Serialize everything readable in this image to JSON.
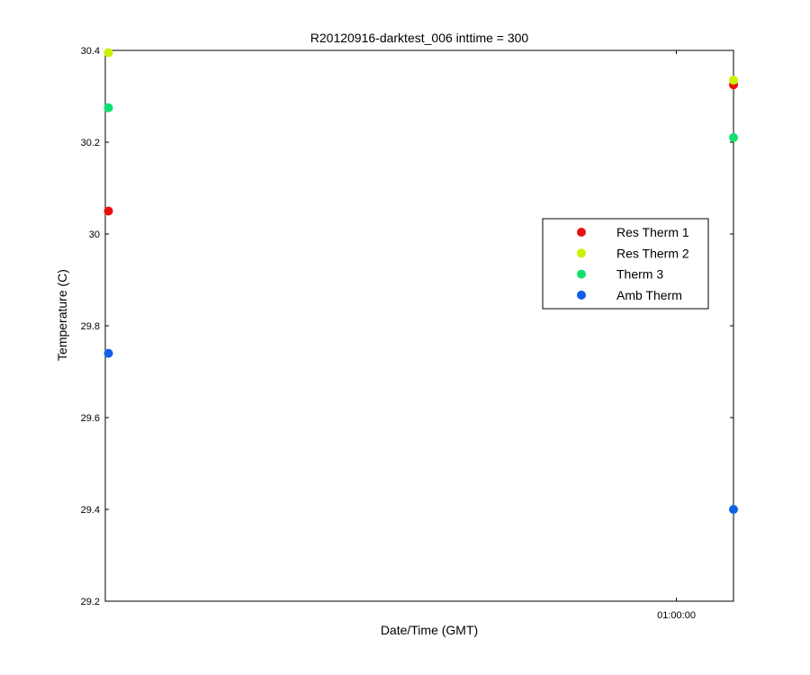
{
  "chart_data": {
    "type": "scatter",
    "title": "R20120916-darktest_006 inttime = 300",
    "xlabel": "Date/Time (GMT)",
    "ylabel": "Temperature (C)",
    "ylim": [
      29.2,
      30.4
    ],
    "yticks": [
      29.2,
      29.4,
      29.6,
      29.8,
      30,
      30.2,
      30.4
    ],
    "xlim": [
      "00:00:00",
      "01:06:00"
    ],
    "xticks": [
      {
        "value": "01:00:00",
        "label": "01:00:00"
      }
    ],
    "x": [
      "00:00:20",
      "01:06:00"
    ],
    "legend_position": "right",
    "grid": false,
    "series": [
      {
        "name": "Res Therm 1",
        "color": "#e81010",
        "values": [
          30.05,
          30.325
        ]
      },
      {
        "name": "Res Therm 2",
        "color": "#ccf000",
        "values": [
          30.395,
          30.335
        ]
      },
      {
        "name": "Therm 3",
        "color": "#10e070",
        "values": [
          30.275,
          30.21
        ]
      },
      {
        "name": "Amb Therm",
        "color": "#1060e8",
        "values": [
          29.74,
          29.4
        ]
      }
    ]
  }
}
